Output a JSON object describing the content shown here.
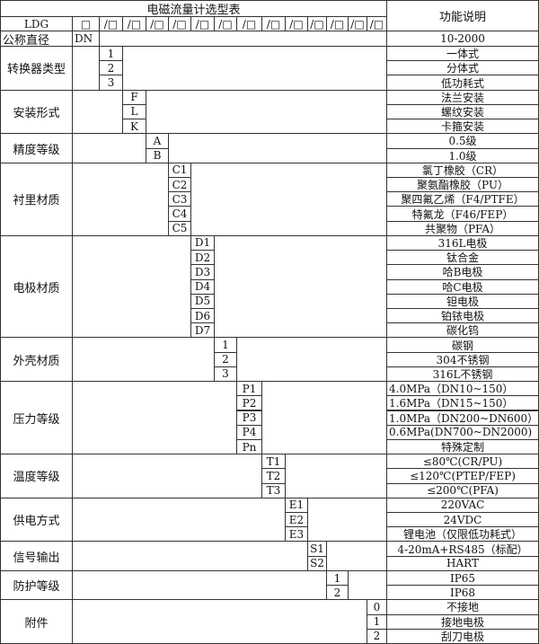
{
  "table_title": "电磁流量计选型表",
  "description_header": "功能说明",
  "model_row": {
    "label": "LDG",
    "first_box": "□",
    "slot_box": "/□"
  },
  "nominal_diameter": {
    "label": "公称直径",
    "code": "DN",
    "description": "10-2000"
  },
  "groups": [
    {
      "label": "转换器类型",
      "codes": [
        "1",
        "2",
        "3"
      ],
      "descriptions": [
        "一体式",
        "分体式",
        "低功耗式"
      ]
    },
    {
      "label": "安装形式",
      "codes": [
        "F",
        "L",
        "K"
      ],
      "descriptions": [
        "法兰安装",
        "螺纹安装",
        "卡箍安装"
      ]
    },
    {
      "label": "精度等级",
      "codes": [
        "A",
        "B"
      ],
      "descriptions": [
        "0.5级",
        "1.0级"
      ]
    },
    {
      "label": "衬里材质",
      "codes": [
        "C1",
        "C2",
        "C3",
        "C4",
        "C5"
      ],
      "descriptions": [
        "氯丁橡胶（CR）",
        "聚氨酯橡胶（PU）",
        "聚四氟乙烯（F4/PTFE）",
        "特氟龙（F46/FEP）",
        "共聚物（PFA）"
      ]
    },
    {
      "label": "电极材质",
      "codes": [
        "D1",
        "D2",
        "D3",
        "D4",
        "D5",
        "D6",
        "D7"
      ],
      "descriptions": [
        "316L电极",
        "钛合金",
        "哈B电极",
        "哈C电极",
        "钽电极",
        "铂铱电极",
        "碳化钨"
      ]
    },
    {
      "label": "外壳材质",
      "codes": [
        "1",
        "2",
        "3"
      ],
      "descriptions": [
        "碳钢",
        "304不锈钢",
        "316L不锈钢"
      ]
    },
    {
      "label": "压力等级",
      "codes": [
        "P1",
        "P2",
        "P3",
        "P4",
        "Pn"
      ],
      "descriptions": [
        "4.0MPa（DN10~150）",
        "1.6MPa（DN15~150）",
        "1.0MPa（DN200~DN600）",
        "0.6MPa(DN700~DN2000)",
        "特殊定制"
      ]
    },
    {
      "label": "温度等级",
      "codes": [
        "T1",
        "T2",
        "T3"
      ],
      "descriptions": [
        "≤80℃(CR/PU)",
        "≤120℃(PTEP/FEP)",
        "≤200℃(PFA)"
      ]
    },
    {
      "label": "供电方式",
      "codes": [
        "E1",
        "E2",
        "E3"
      ],
      "descriptions": [
        "220VAC",
        "24VDC",
        "锂电池（仅限低功耗式）"
      ]
    },
    {
      "label": "信号输出",
      "codes": [
        "S1",
        "S2"
      ],
      "descriptions": [
        "4-20mA+RS485（标配）",
        "HART"
      ]
    },
    {
      "label": "防护等级",
      "codes": [
        "1",
        "2"
      ],
      "descriptions": [
        "IP65",
        "IP68"
      ]
    },
    {
      "label": "附件",
      "codes": [
        "0",
        "1",
        "2"
      ],
      "descriptions": [
        "不接地",
        "接地电极",
        "刮刀电极"
      ]
    }
  ]
}
